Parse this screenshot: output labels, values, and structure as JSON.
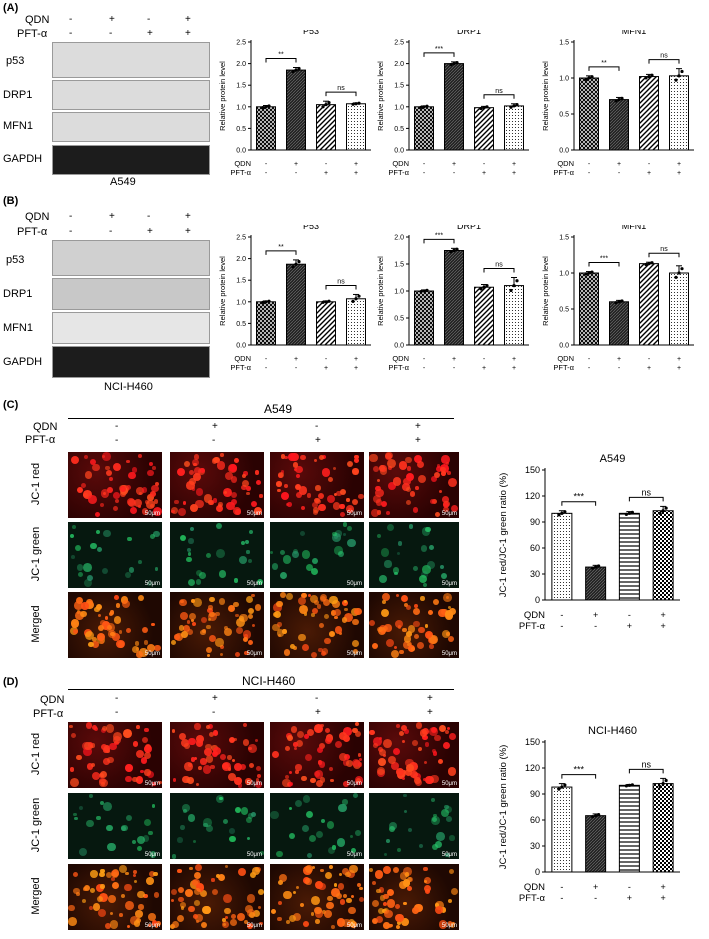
{
  "labels": {
    "panel_a": "(A)",
    "panel_b": "(B)",
    "panel_c": "(C)",
    "panel_d": "(D)",
    "qdn": "QDN",
    "pft": "PFT-α",
    "p53": "p53",
    "drp1": "DRP1",
    "mfn1": "MFN1",
    "gapdh": "GAPDH",
    "a549": "A549",
    "h460": "NCI-H460",
    "jc1_red": "JC-1 red",
    "jc1_green": "JC-1 green",
    "merged": "Merged",
    "scale": "50μm"
  },
  "treat_signs": {
    "qdn": [
      "-",
      "+",
      "-",
      "+"
    ],
    "pft": [
      "-",
      "-",
      "+",
      "+"
    ]
  },
  "chart_data": [
    {
      "id": "a_p53",
      "type": "bar",
      "title": "P53",
      "ylabel": "Relative protein level",
      "ylim": [
        0,
        2.5
      ],
      "ticks": [
        "0.0",
        "0.5",
        "1.0",
        "1.5",
        "2.0",
        "2.5"
      ],
      "tickvals": [
        0,
        0.5,
        1,
        1.5,
        2,
        2.5
      ],
      "values": [
        1.0,
        1.85,
        1.05,
        1.07
      ],
      "err": [
        0.03,
        0.06,
        0.08,
        0.02
      ],
      "sig": [
        "**",
        "ns"
      ],
      "fills": [
        "cross",
        "dark",
        "diag",
        "dots"
      ]
    },
    {
      "id": "a_drp1",
      "type": "bar",
      "title": "DRP1",
      "ylabel": "Relative protein level",
      "ylim": [
        0,
        2.5
      ],
      "ticks": [
        "0.0",
        "0.5",
        "1.0",
        "1.5",
        "2.0",
        "2.5"
      ],
      "tickvals": [
        0,
        0.5,
        1,
        1.5,
        2,
        2.5
      ],
      "values": [
        1.0,
        2.0,
        0.98,
        1.02
      ],
      "err": [
        0.02,
        0.04,
        0.03,
        0.05
      ],
      "sig": [
        "***",
        "ns"
      ],
      "fills": [
        "cross",
        "dark",
        "diag",
        "dots"
      ]
    },
    {
      "id": "a_mfn1",
      "type": "bar",
      "title": "MFN1",
      "ylabel": "Relative protein level",
      "ylim": [
        0,
        1.5
      ],
      "ticks": [
        "0.0",
        "0.5",
        "1.0",
        "1.5"
      ],
      "tickvals": [
        0,
        0.5,
        1,
        1.5
      ],
      "values": [
        1.0,
        0.7,
        1.02,
        1.03
      ],
      "err": [
        0.03,
        0.03,
        0.03,
        0.1
      ],
      "sig": [
        "**",
        "ns"
      ],
      "fills": [
        "cross",
        "dark",
        "diag",
        "dots"
      ]
    },
    {
      "id": "b_p53",
      "type": "bar",
      "title": "P53",
      "ylabel": "Relative protein level",
      "ylim": [
        0,
        2.5
      ],
      "ticks": [
        "0.0",
        "0.5",
        "1.0",
        "1.5",
        "2.0",
        "2.5"
      ],
      "tickvals": [
        0,
        0.5,
        1,
        1.5,
        2,
        2.5
      ],
      "values": [
        1.0,
        1.87,
        1.0,
        1.07
      ],
      "err": [
        0.02,
        0.1,
        0.02,
        0.1
      ],
      "sig": [
        "**",
        "ns"
      ],
      "fills": [
        "cross",
        "dark",
        "diag",
        "dots"
      ]
    },
    {
      "id": "b_drp1",
      "type": "bar",
      "title": "DRP1",
      "ylabel": "Relative protein level",
      "ylim": [
        0,
        2.0
      ],
      "ticks": [
        "0.0",
        "0.5",
        "1.0",
        "1.5",
        "2.0"
      ],
      "tickvals": [
        0,
        0.5,
        1,
        1.5,
        2
      ],
      "values": [
        1.0,
        1.75,
        1.07,
        1.1
      ],
      "err": [
        0.02,
        0.04,
        0.05,
        0.15
      ],
      "sig": [
        "***",
        "ns"
      ],
      "fills": [
        "cross",
        "dark",
        "diag",
        "dots"
      ]
    },
    {
      "id": "b_mfn1",
      "type": "bar",
      "title": "MFN1",
      "ylabel": "Relative protein level",
      "ylim": [
        0,
        1.5
      ],
      "ticks": [
        "0.0",
        "0.5",
        "1.0",
        "1.5"
      ],
      "tickvals": [
        0,
        0.5,
        1,
        1.5
      ],
      "values": [
        1.0,
        0.6,
        1.13,
        1.0
      ],
      "err": [
        0.02,
        0.02,
        0.02,
        0.1
      ],
      "sig": [
        "***",
        "ns"
      ],
      "fills": [
        "cross",
        "dark",
        "diag",
        "dots"
      ]
    },
    {
      "id": "c_jc1",
      "type": "bar",
      "title": "A549",
      "ylabel": "JC-1 red/JC-1 green ratio (%)",
      "ylim": [
        0,
        150
      ],
      "ticks": [
        "0",
        "30",
        "60",
        "90",
        "120",
        "150"
      ],
      "tickvals": [
        0,
        30,
        60,
        90,
        120,
        150
      ],
      "values": [
        100,
        38,
        100,
        103
      ],
      "err": [
        3,
        2,
        2,
        5
      ],
      "sig": [
        "***",
        "ns"
      ],
      "fills": [
        "dots",
        "dark",
        "hlines",
        "check"
      ]
    },
    {
      "id": "d_jc1",
      "type": "bar",
      "title": "NCI-H460",
      "ylabel": "JC-1 red/JC-1 green ratio (%)",
      "ylim": [
        0,
        150
      ],
      "ticks": [
        "0",
        "30",
        "60",
        "90",
        "120",
        "150"
      ],
      "tickvals": [
        0,
        30,
        60,
        90,
        120,
        150
      ],
      "values": [
        98,
        65,
        100,
        102
      ],
      "err": [
        4,
        2,
        1,
        6
      ],
      "sig": [
        "***",
        "ns"
      ],
      "fills": [
        "dots",
        "dark",
        "hlines",
        "check"
      ]
    }
  ]
}
